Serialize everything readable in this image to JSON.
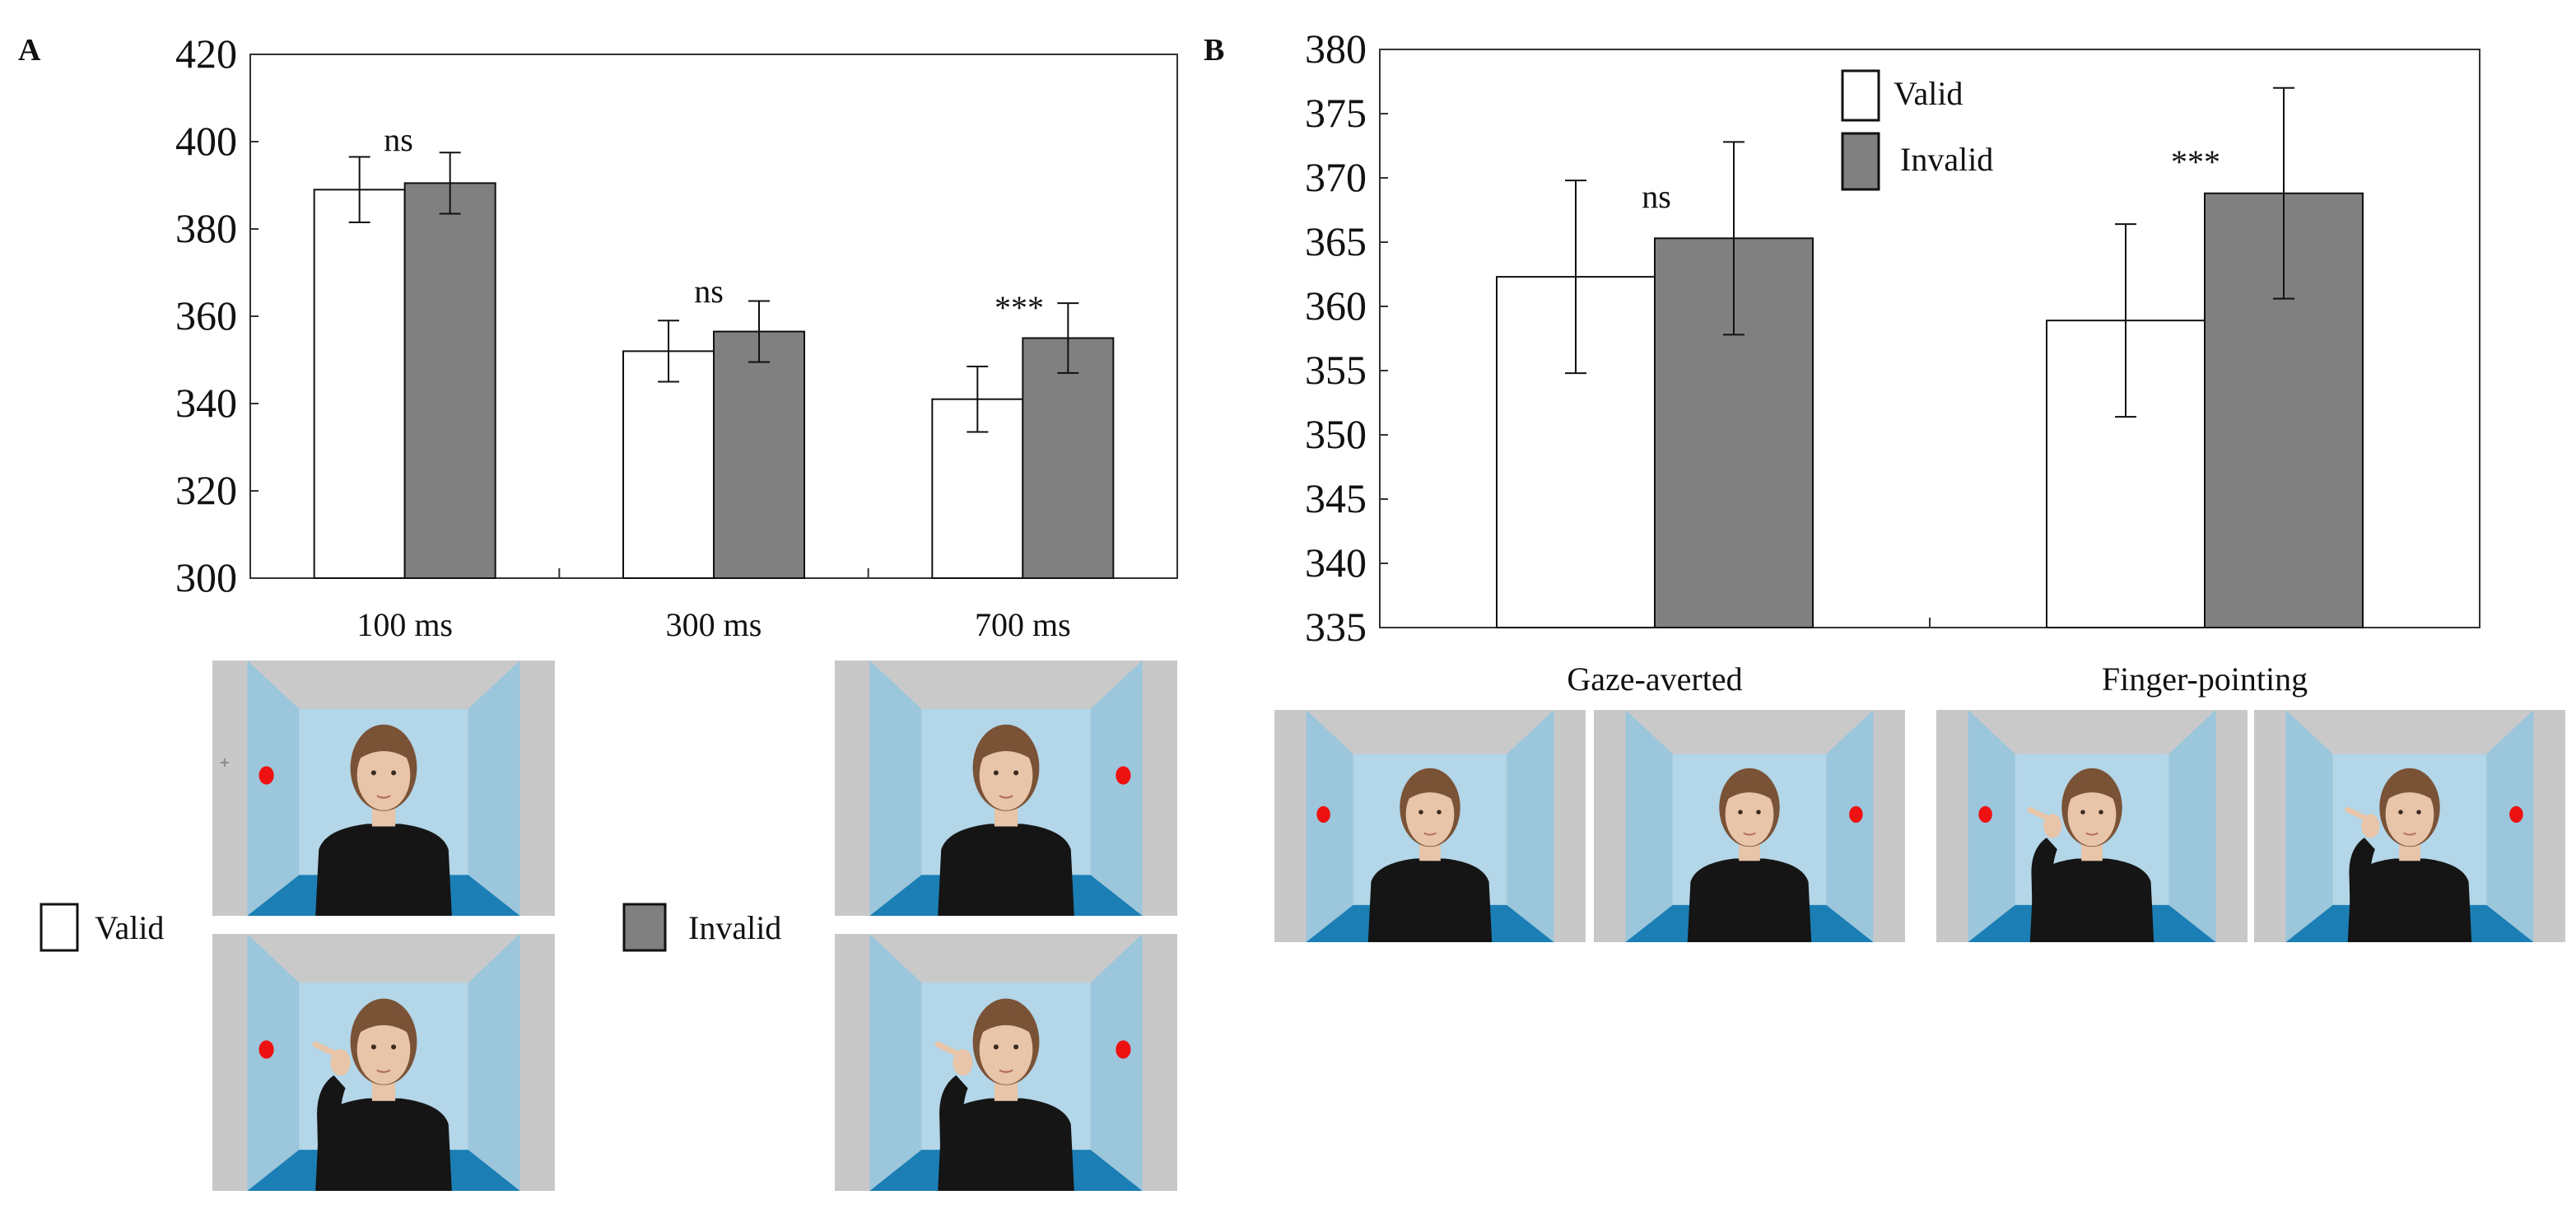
{
  "chart_data": [
    {
      "panel": "A",
      "type": "bar",
      "categories": [
        "100 ms",
        "300 ms",
        "700 ms"
      ],
      "series": [
        {
          "name": "Valid",
          "color": "#ffffff",
          "values": [
            389,
            352,
            341
          ],
          "error": [
            7.5,
            7,
            7.5
          ]
        },
        {
          "name": "Invalid",
          "color": "#808080",
          "values": [
            390.5,
            356.5,
            355
          ],
          "error": [
            7,
            7,
            8
          ]
        }
      ],
      "annotations": [
        "ns",
        "ns",
        "***"
      ],
      "ylim": [
        300,
        420
      ],
      "yticks": [
        300,
        320,
        340,
        360,
        380,
        400,
        420
      ],
      "grid": false
    },
    {
      "panel": "B",
      "type": "bar",
      "categories": [
        "Gaze-averted",
        "Finger-pointing"
      ],
      "series": [
        {
          "name": "Valid",
          "color": "#ffffff",
          "values": [
            362.3,
            358.9
          ],
          "error": [
            7.5,
            7.5
          ]
        },
        {
          "name": "Invalid",
          "color": "#808080",
          "values": [
            365.3,
            368.8
          ],
          "error": [
            7.5,
            8.2
          ]
        }
      ],
      "annotations": [
        "ns",
        "***"
      ],
      "ylim": [
        335,
        380
      ],
      "yticks": [
        335,
        340,
        345,
        350,
        355,
        360,
        365,
        370,
        375,
        380
      ],
      "grid": false,
      "legend": [
        "Valid",
        "Invalid"
      ],
      "legend_position": "top-center"
    }
  ],
  "panel_labels": {
    "a": "A",
    "b": "B"
  },
  "legend_a": {
    "valid": "Valid",
    "invalid": "Invalid"
  },
  "colors": {
    "valid": "#ffffff",
    "invalid": "#808080",
    "axis": "#222222"
  },
  "stimuli": {
    "wall": "#a9cfe3",
    "floor": "#1b7fb5",
    "frame": "#c8c8c8",
    "target": "#ee1111",
    "clothing": "#151515",
    "hair": "#7a5236",
    "skin": "#e8c4a8"
  }
}
